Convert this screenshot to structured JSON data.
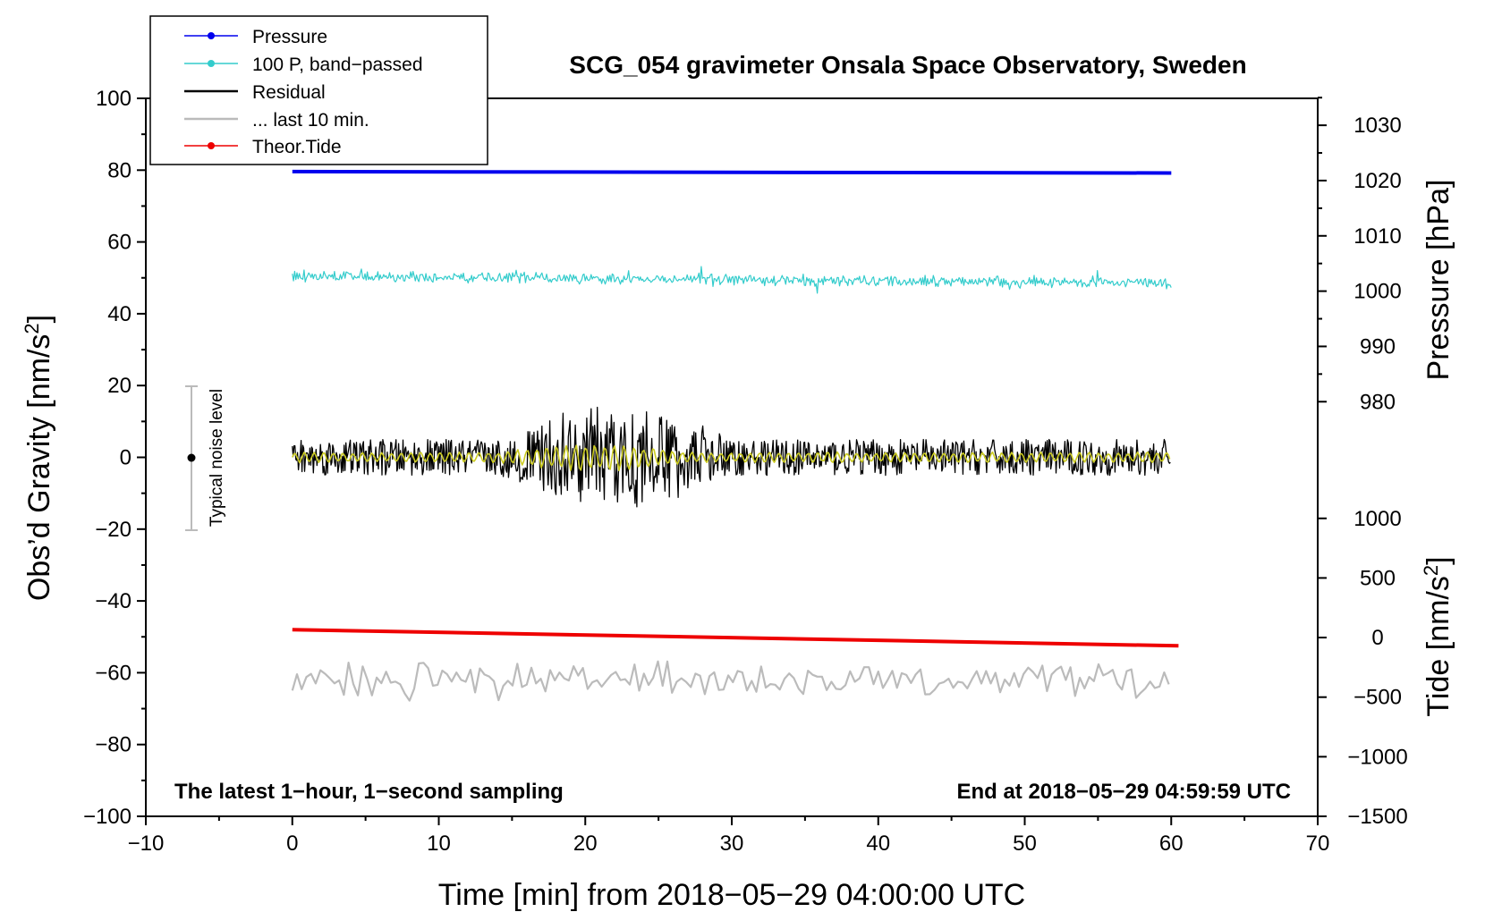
{
  "chart_data": {
    "type": "line",
    "title": "SCG_054 gravimeter Onsala Space Observatory, Sweden",
    "xlabel": "Time [min] from 2018−05−29 04:00:00 UTC",
    "ylabel_left": "Obs’d Gravity [nm/s",
    "ylabel_left_sup": "2",
    "ylabel_left_end": "]",
    "ylabel_right_pressure": "Pressure [hPa]",
    "ylabel_right_tide": "Tide [nm/s",
    "ylabel_right_tide_sup": "2",
    "ylabel_right_tide_end": "]",
    "xlim": [
      -10,
      70
    ],
    "ylim_left": [
      -100,
      100
    ],
    "x_ticks": [
      -10,
      0,
      10,
      20,
      30,
      40,
      50,
      60,
      70
    ],
    "x_tick_labels": [
      "−10",
      "0",
      "10",
      "20",
      "30",
      "40",
      "50",
      "60",
      "70"
    ],
    "y_left_ticks": [
      100,
      80,
      60,
      40,
      20,
      0,
      -20,
      -40,
      -60,
      -80,
      -100
    ],
    "y_left_tick_labels": [
      "100",
      "80",
      "60",
      "40",
      "20",
      "0",
      "−20",
      "−40",
      "−60",
      "−80",
      "−100"
    ],
    "pressure_axis": {
      "ticks": [
        1030,
        1020,
        1010,
        1000,
        990,
        980
      ],
      "tick_labels": [
        "1030",
        "1020",
        "1010",
        "1000",
        "990",
        "980"
      ],
      "maps_to_gravity": [
        [
          1030,
          92.5
        ],
        [
          980,
          15.5
        ]
      ]
    },
    "tide_axis": {
      "ticks": [
        1000,
        500,
        0,
        -500,
        -1000,
        -1500
      ],
      "tick_labels": [
        "1000",
        "500",
        "0",
        "−500",
        "−1000",
        "−1500"
      ],
      "maps_to_gravity": [
        [
          1000,
          -17
        ],
        [
          -1500,
          -100
        ]
      ]
    },
    "series": [
      {
        "name": "Pressure",
        "color": "#0000ee",
        "kind": "flat",
        "x_range": [
          0,
          60
        ],
        "y_start": 79.6,
        "y_end": 79.2,
        "unit_value_hPa": 1021.5
      },
      {
        "name": "100 P, band−passed",
        "color": "#33cccc",
        "kind": "noise",
        "x_range": [
          0,
          60
        ],
        "y_start": 50.5,
        "y_end": 48.5,
        "amplitude": 2.5
      },
      {
        "name": "Residual",
        "color": "#000000",
        "kind": "noise",
        "x_range": [
          0,
          60
        ],
        "center": 0,
        "base_amplitude": 5,
        "burst_range_min": [
          14,
          30
        ],
        "burst_amplitude": 16
      },
      {
        "name": "Residual (filtered)",
        "color": "#cccc22",
        "kind": "noise",
        "x_range": [
          0,
          60
        ],
        "center": 0,
        "base_amplitude": 1.5,
        "burst_range_min": [
          14,
          27
        ],
        "burst_amplitude": 4
      },
      {
        "name": "... last 10 min.",
        "color": "#bbbbbb",
        "kind": "noise",
        "x_range": [
          0,
          60
        ],
        "center": -62,
        "amplitude": 6
      },
      {
        "name": "Theor.Tide",
        "color": "#ee0000",
        "kind": "flat",
        "x_range": [
          0,
          60.5
        ],
        "y_start": -48,
        "y_end": -52.5
      }
    ],
    "legend": [
      {
        "label": "Pressure",
        "color": "#0000ee",
        "marker": true
      },
      {
        "label": "100 P, band−passed",
        "color": "#33cccc",
        "marker": true
      },
      {
        "label": "Residual",
        "color": "#000000",
        "marker": false
      },
      {
        "label": "... last 10 min.",
        "color": "#bbbbbb",
        "marker": false
      },
      {
        "label": "Theor.Tide",
        "color": "#ee0000",
        "marker": true
      }
    ],
    "legend_position": "top-left",
    "noise_bar": {
      "label": "Typical noise level",
      "x": -7,
      "y_center": 0,
      "y_range": [
        -20,
        20
      ]
    },
    "annotations": {
      "bottom_left": "The latest 1−hour, 1−second sampling",
      "bottom_right": "End at 2018−05−29 04:59:59 UTC"
    }
  }
}
